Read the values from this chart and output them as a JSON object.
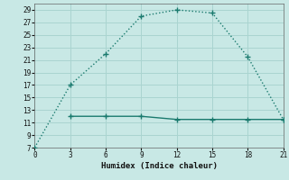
{
  "xlabel": "Humidex (Indice chaleur)",
  "line1_x": [
    0,
    3,
    6,
    9,
    12,
    15,
    18,
    21
  ],
  "line1_y": [
    7,
    17,
    22,
    28,
    29,
    28.5,
    21.5,
    11.5
  ],
  "line2_x": [
    3,
    6,
    9,
    12,
    15,
    18,
    21
  ],
  "line2_y": [
    12,
    12,
    12,
    11.5,
    11.5,
    11.5,
    11.5
  ],
  "line_color": "#1a7a6e",
  "bg_color": "#c8e8e5",
  "grid_color": "#aad4d0",
  "plot_bg": "#c8e8e5",
  "xlim": [
    0,
    21
  ],
  "ylim": [
    7,
    30
  ],
  "yticks": [
    7,
    9,
    11,
    13,
    15,
    17,
    19,
    21,
    23,
    25,
    27,
    29
  ],
  "xticks": [
    0,
    3,
    6,
    9,
    12,
    15,
    18,
    21
  ]
}
